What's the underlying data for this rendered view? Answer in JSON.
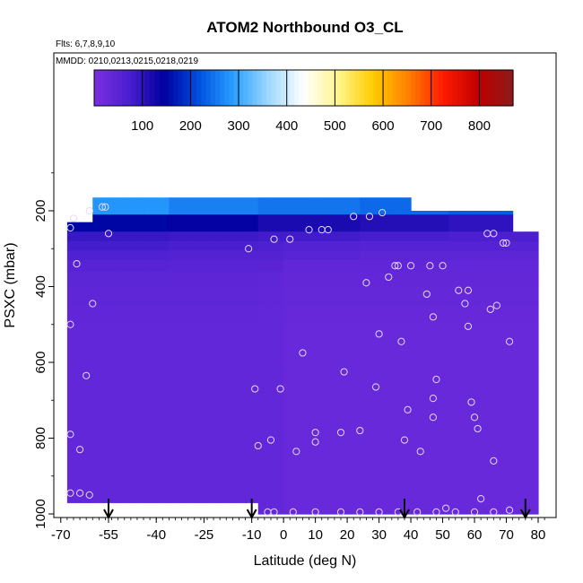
{
  "chart_data": {
    "type": "heatmap",
    "title": "ATOM2 Northbound O3_CL",
    "subtitle_flights": "Flts: 6,7,8,9,10",
    "subtitle_dates": "MMDD: 0210,0213,0215,0218,0219",
    "xlabel": "Latitude (deg N)",
    "ylabel": "PSXC (mbar)",
    "xlim": [
      -70,
      82
    ],
    "ylim": [
      1010,
      0
    ],
    "x_ticks": [
      "-70",
      "-55",
      "-40",
      "-25",
      "-10",
      "0",
      "10",
      "20",
      "30",
      "40",
      "50",
      "60",
      "70",
      "80"
    ],
    "x_tick_values": [
      -70,
      -55,
      -40,
      -25,
      -10,
      0,
      10,
      20,
      30,
      40,
      50,
      60,
      70,
      80
    ],
    "y_ticks": [
      "200",
      "400",
      "600",
      "800",
      "1000"
    ],
    "y_tick_values": [
      200,
      400,
      600,
      800,
      1000
    ],
    "colorbar": {
      "min": 0,
      "max": 870,
      "tick_labels": [
        "100",
        "200",
        "300",
        "400",
        "500",
        "600",
        "700",
        "800"
      ],
      "tick_values": [
        100,
        200,
        300,
        400,
        500,
        600,
        700,
        800
      ],
      "colors": [
        "#7a2fe0",
        "#4a1fd0",
        "#0000a0",
        "#0050e0",
        "#2aa0ff",
        "#9ed8ff",
        "#ffffff",
        "#fff58a",
        "#ffcc00",
        "#ff8000",
        "#ff1a00",
        "#c00000",
        "#8b1a1a"
      ]
    },
    "field": {
      "lat_edges": [
        -68,
        -64,
        -60,
        -56,
        -52,
        -48,
        -44,
        -40,
        -36,
        -32,
        -28,
        -24,
        -20,
        -16,
        -12,
        -8,
        -4,
        0,
        4,
        8,
        12,
        16,
        20,
        24,
        28,
        32,
        36,
        40,
        44,
        48,
        52,
        56,
        60,
        64,
        68,
        72,
        76,
        80
      ],
      "p_levels": [
        165,
        210,
        255,
        280,
        305,
        330,
        360,
        400,
        450,
        500,
        560,
        620,
        680,
        740,
        800,
        860,
        920,
        970,
        1000
      ],
      "top_p_by_lat": [
        230,
        230,
        165,
        165,
        165,
        165,
        165,
        165,
        165,
        165,
        165,
        165,
        165,
        165,
        165,
        165,
        165,
        165,
        165,
        165,
        165,
        165,
        165,
        165,
        165,
        165,
        165,
        200,
        200,
        200,
        200,
        200,
        200,
        200,
        200,
        255,
        255
      ],
      "values_by_level": [
        [
          280,
          260,
          250,
          240,
          230
        ],
        [
          150,
          140,
          120,
          110,
          100
        ],
        [
          90,
          85,
          80,
          75,
          70
        ],
        [
          70,
          65,
          60,
          55,
          55
        ],
        [
          55,
          50,
          50,
          45,
          45
        ],
        [
          45,
          42,
          40,
          40,
          38
        ],
        [
          38,
          36,
          35,
          35,
          34
        ],
        [
          34,
          33,
          32,
          32,
          32
        ],
        [
          32,
          31,
          30,
          30,
          30
        ],
        [
          30,
          30,
          29,
          29,
          29
        ],
        [
          29,
          29,
          28,
          28,
          28
        ],
        [
          28,
          28,
          28,
          28,
          28
        ],
        [
          28,
          28,
          28,
          28,
          28
        ],
        [
          28,
          28,
          28,
          28,
          28
        ],
        [
          28,
          28,
          28,
          28,
          28
        ],
        [
          28,
          28,
          28,
          28,
          28
        ],
        [
          28,
          28,
          28,
          28,
          28
        ],
        [
          28,
          28,
          28,
          28,
          28
        ]
      ]
    },
    "sample_points": [
      [
        -67,
        245
      ],
      [
        -67,
        500
      ],
      [
        -67,
        790
      ],
      [
        -67,
        945
      ],
      [
        -66,
        220
      ],
      [
        -65,
        340
      ],
      [
        -64,
        830
      ],
      [
        -64,
        945
      ],
      [
        -62,
        635
      ],
      [
        -61,
        200
      ],
      [
        -61,
        950
      ],
      [
        -60,
        445
      ],
      [
        -57,
        190
      ],
      [
        -56,
        190
      ],
      [
        -55,
        260
      ],
      [
        -11,
        300
      ],
      [
        -9,
        670
      ],
      [
        -8,
        820
      ],
      [
        -4,
        805
      ],
      [
        -3,
        275
      ],
      [
        -1,
        670
      ],
      [
        2,
        275
      ],
      [
        4,
        835
      ],
      [
        6,
        575
      ],
      [
        8,
        250
      ],
      [
        10,
        810
      ],
      [
        10,
        785
      ],
      [
        12,
        250
      ],
      [
        14,
        250
      ],
      [
        18,
        785
      ],
      [
        19,
        625
      ],
      [
        22,
        215
      ],
      [
        24,
        780
      ],
      [
        26,
        390
      ],
      [
        27,
        215
      ],
      [
        29,
        665
      ],
      [
        30,
        525
      ],
      [
        31,
        205
      ],
      [
        33,
        375
      ],
      [
        35,
        345
      ],
      [
        36,
        345
      ],
      [
        37,
        545
      ],
      [
        38,
        805
      ],
      [
        39,
        725
      ],
      [
        40,
        345
      ],
      [
        43,
        835
      ],
      [
        45,
        420
      ],
      [
        46,
        345
      ],
      [
        47,
        480
      ],
      [
        47,
        695
      ],
      [
        47,
        745
      ],
      [
        48,
        645
      ],
      [
        50,
        345
      ],
      [
        51,
        985
      ],
      [
        55,
        410
      ],
      [
        57,
        445
      ],
      [
        58,
        410
      ],
      [
        58,
        505
      ],
      [
        59,
        705
      ],
      [
        60,
        745
      ],
      [
        61,
        775
      ],
      [
        62,
        960
      ],
      [
        64,
        260
      ],
      [
        65,
        460
      ],
      [
        66,
        860
      ],
      [
        66,
        260
      ],
      [
        67,
        450
      ],
      [
        69,
        285
      ],
      [
        70,
        285
      ],
      [
        71,
        545
      ],
      [
        71,
        990
      ],
      [
        -5,
        995
      ],
      [
        -3,
        995
      ],
      [
        3,
        995
      ],
      [
        10,
        995
      ],
      [
        18,
        995
      ],
      [
        24,
        995
      ],
      [
        30,
        995
      ],
      [
        36,
        995
      ],
      [
        42,
        995
      ],
      [
        48,
        995
      ],
      [
        54,
        995
      ],
      [
        60,
        995
      ],
      [
        66,
        995
      ]
    ],
    "arrows_lat": [
      -55,
      -10,
      38,
      76
    ],
    "no_data_regions": [
      {
        "lat_range": [
          -68,
          -8
        ],
        "p_range": [
          965,
          1010
        ]
      },
      {
        "lat_range": [
          -68,
          -56
        ],
        "p_range": [
          0,
          230
        ]
      }
    ]
  }
}
